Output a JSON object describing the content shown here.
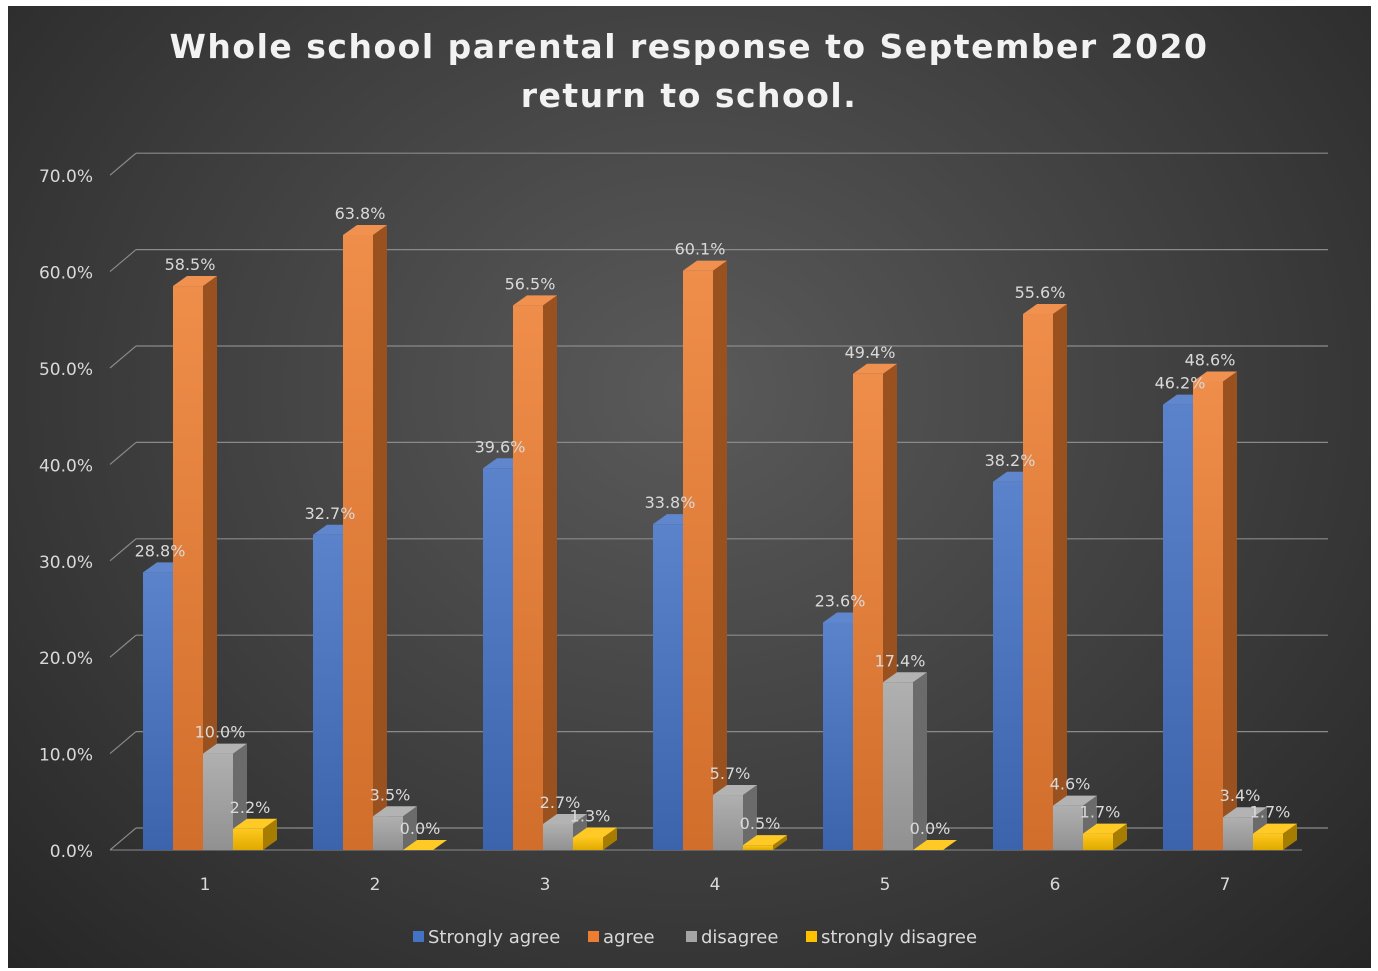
{
  "chart_data": {
    "type": "bar",
    "style": "3d-clustered-column",
    "title": "Whole school parental response to September 2020 return to school.",
    "title_lines": [
      "Whole school parental response to September 2020",
      "return to school."
    ],
    "xlabel": "",
    "ylabel": "",
    "categories": [
      "1",
      "2",
      "3",
      "4",
      "5",
      "6",
      "7"
    ],
    "y_ticks": [
      "0.0%",
      "10.0%",
      "20.0%",
      "30.0%",
      "40.0%",
      "50.0%",
      "60.0%",
      "70.0%"
    ],
    "ylim": [
      0,
      70
    ],
    "grid": true,
    "legend_position": "bottom",
    "series": [
      {
        "name": "Strongly agree",
        "color": "#4472c4",
        "values": [
          28.8,
          32.7,
          39.6,
          33.8,
          23.6,
          38.2,
          46.2
        ],
        "labels": [
          "28.8%",
          "32.7%",
          "39.6%",
          "33.8%",
          "23.6%",
          "38.2%",
          "46.2%"
        ]
      },
      {
        "name": "agree",
        "color": "#ed7d31",
        "values": [
          58.5,
          63.8,
          56.5,
          60.1,
          49.4,
          55.6,
          48.6
        ],
        "labels": [
          "58.5%",
          "63.8%",
          "56.5%",
          "60.1%",
          "49.4%",
          "55.6%",
          "48.6%"
        ]
      },
      {
        "name": "disagree",
        "color": "#a5a5a5",
        "values": [
          10.0,
          3.5,
          2.7,
          5.7,
          17.4,
          4.6,
          3.4
        ],
        "labels": [
          "10.0%",
          "3.5%",
          "2.7%",
          "5.7%",
          "17.4%",
          "4.6%",
          "3.4%"
        ]
      },
      {
        "name": "strongly disagree",
        "color": "#ffc000",
        "values": [
          2.2,
          0.0,
          1.3,
          0.5,
          0.0,
          1.7,
          1.7
        ],
        "labels": [
          "2.2%",
          "0.0%",
          "1.3%",
          "0.5%",
          "0.0%",
          "1.7%",
          "1.7%"
        ]
      }
    ]
  }
}
